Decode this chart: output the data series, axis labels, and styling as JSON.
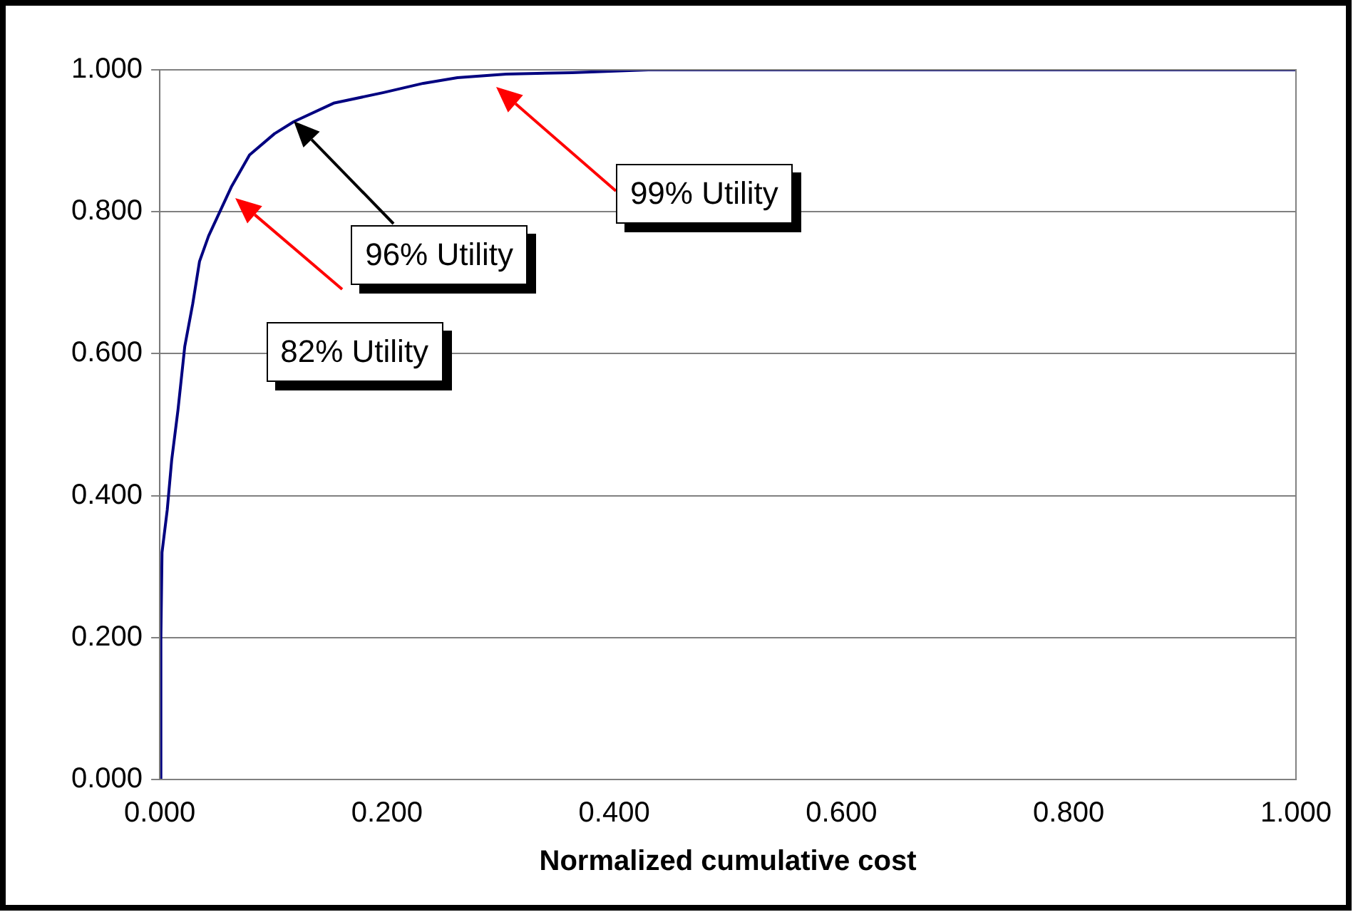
{
  "chart_data": {
    "type": "line",
    "xlabel": "Normalized cumulative cost",
    "series": [
      {
        "color": "#000080",
        "x": [
          0,
          0.001,
          0.002,
          0.0066,
          0.0105,
          0.016,
          0.022,
          0.029,
          0.035,
          0.043,
          0.063,
          0.079,
          0.101,
          0.118,
          0.153,
          0.197,
          0.232,
          0.262,
          0.305,
          0.363,
          0.43,
          0.6,
          0.8,
          1.0
        ],
        "values": [
          0,
          0.2,
          0.32,
          0.38,
          0.45,
          0.52,
          0.61,
          0.67,
          0.73,
          0.766,
          0.835,
          0.88,
          0.91,
          0.927,
          0.953,
          0.968,
          0.981,
          0.989,
          0.994,
          0.996,
          1.0,
          1.0,
          1.0,
          1.0
        ]
      }
    ],
    "xlim": [
      0,
      1
    ],
    "ylim": [
      0,
      1
    ],
    "xticks": [
      {
        "value": 0,
        "label": "0.000"
      },
      {
        "value": 0.2,
        "label": "0.200"
      },
      {
        "value": 0.4,
        "label": "0.400"
      },
      {
        "value": 0.6,
        "label": "0.600"
      },
      {
        "value": 0.8,
        "label": "0.800"
      },
      {
        "value": 1,
        "label": "1.000"
      }
    ],
    "yticks": [
      {
        "value": 0,
        "label": "0.000"
      },
      {
        "value": 0.2,
        "label": "0.200"
      },
      {
        "value": 0.4,
        "label": "0.400"
      },
      {
        "value": 0.6,
        "label": "0.600"
      },
      {
        "value": 0.8,
        "label": "0.800"
      },
      {
        "value": 1,
        "label": "1.000"
      }
    ],
    "grid": "y",
    "legend": false,
    "marker": "none",
    "line_style": "solid",
    "annotations": [
      "82% Utility",
      "96% Utility",
      "99% Utility"
    ]
  }
}
